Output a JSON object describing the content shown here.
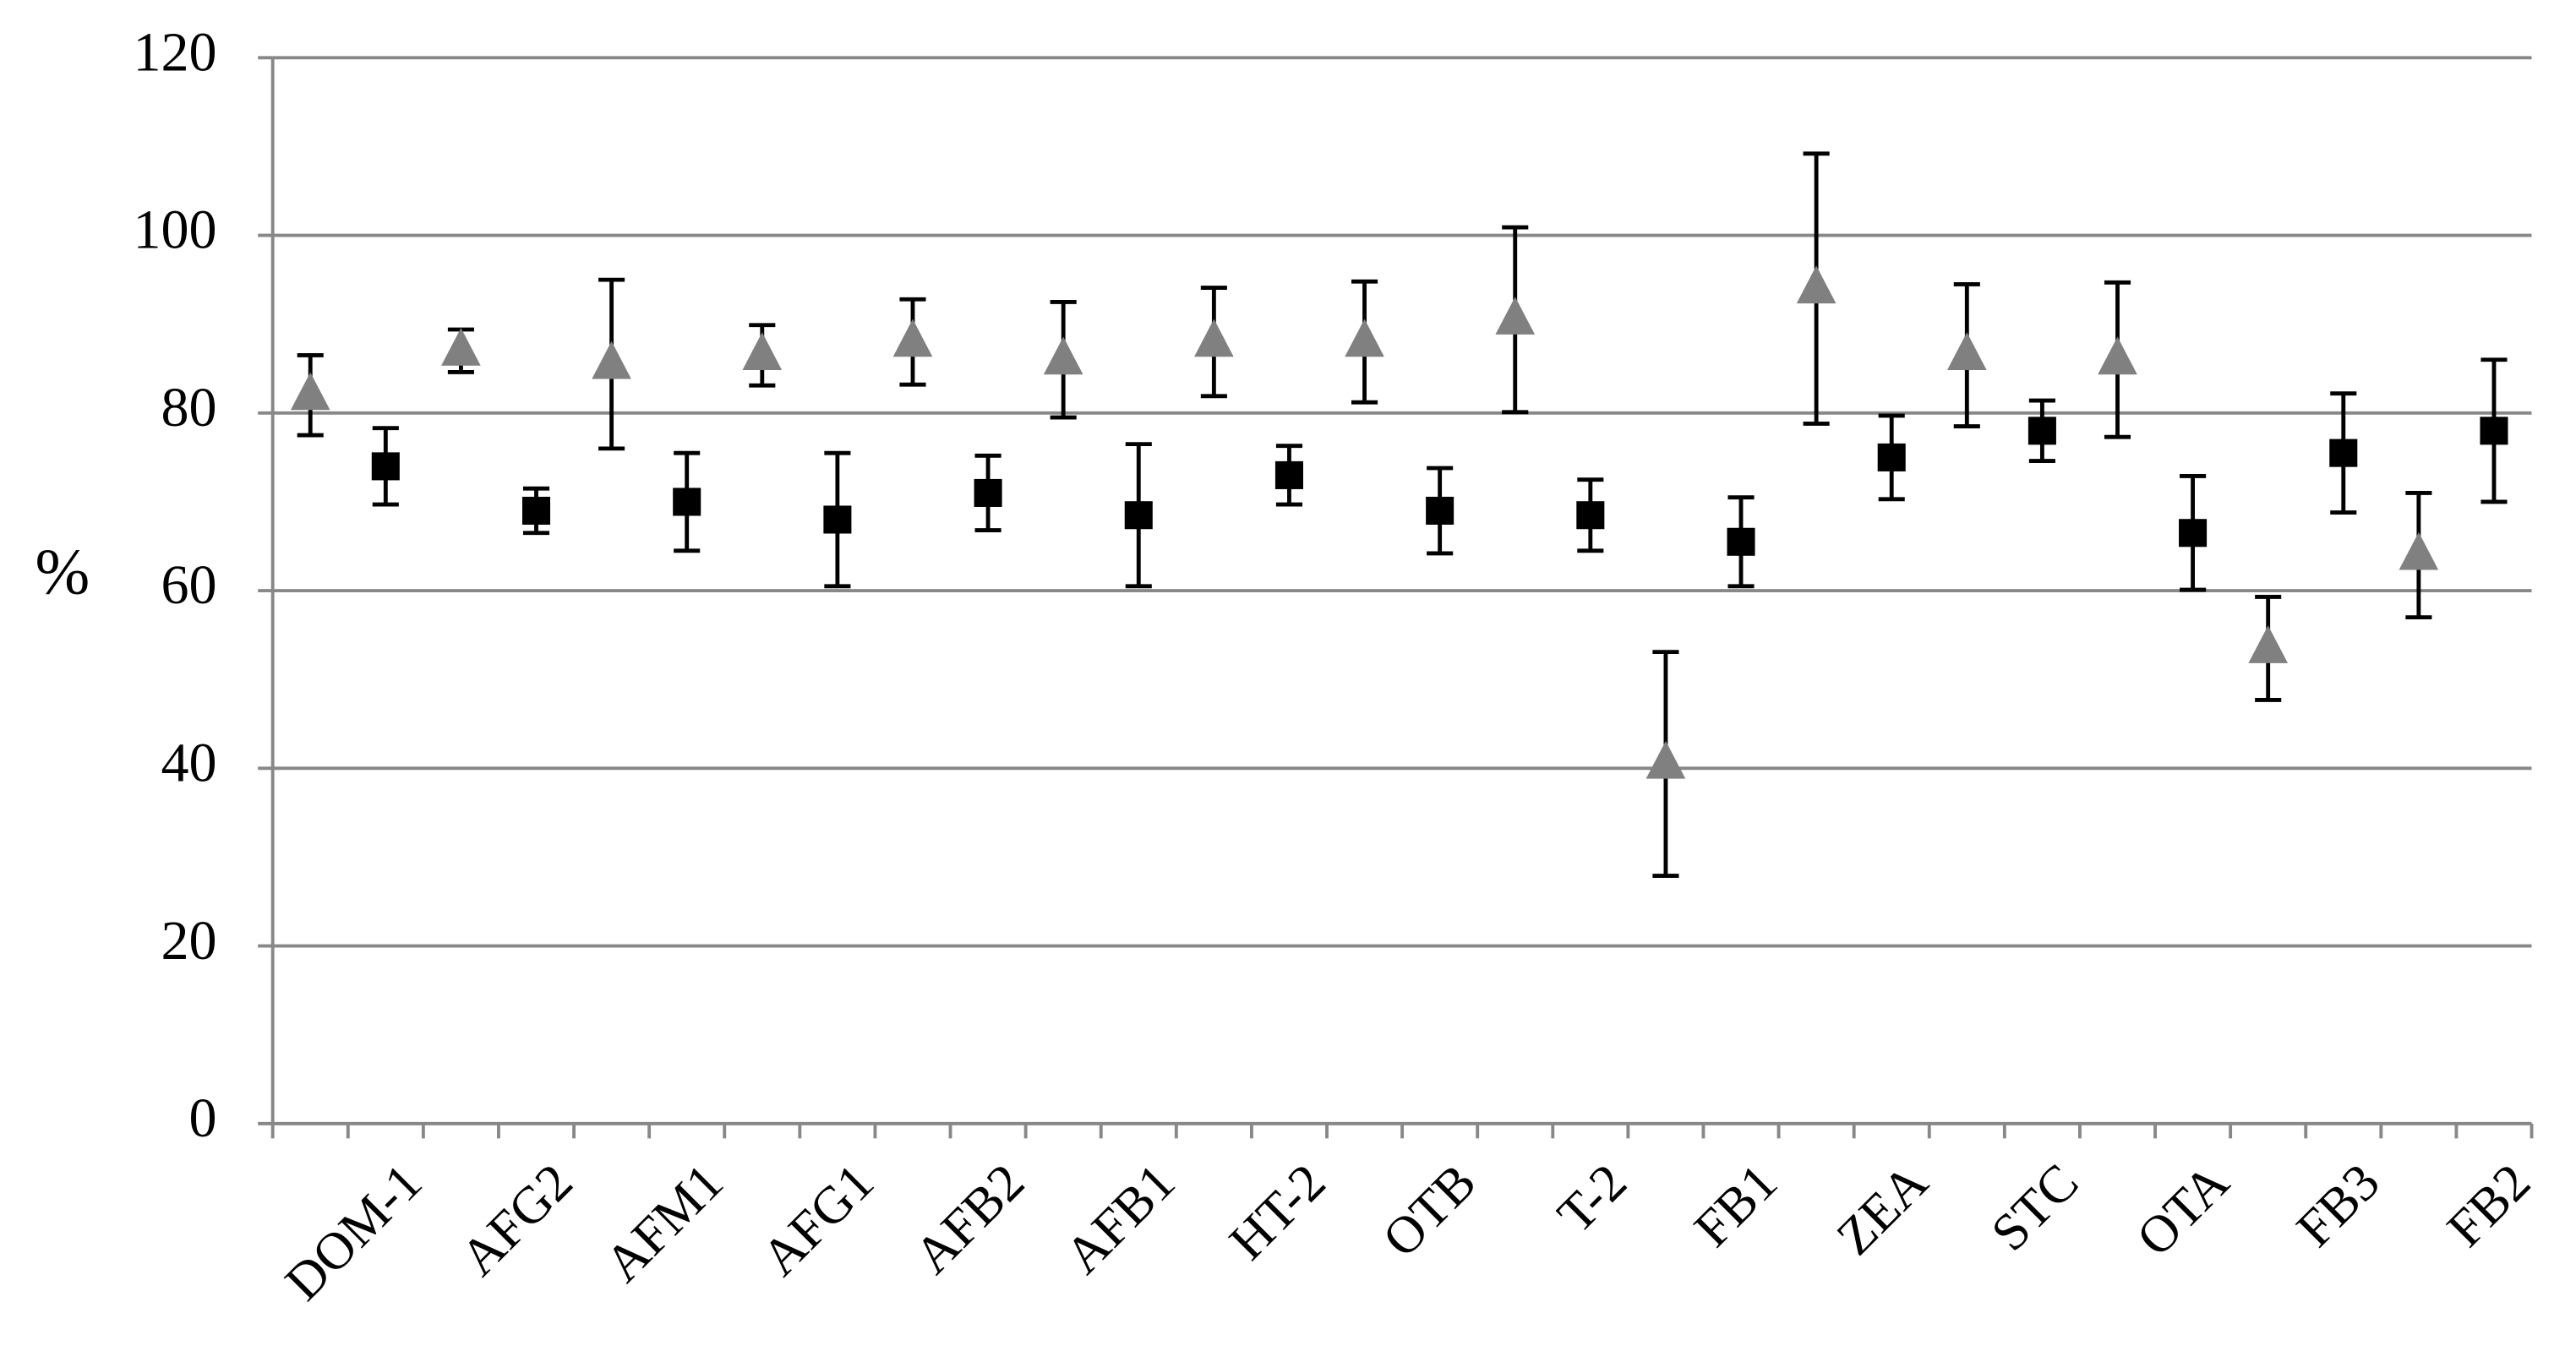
{
  "chart_data": {
    "type": "errorbar",
    "y_label": "%",
    "categories": [
      null,
      "DOM-1",
      null,
      "AFG2",
      null,
      "AFM1",
      null,
      "AFG1",
      null,
      "AFB2",
      null,
      "AFB1",
      null,
      "HT-2",
      null,
      "OTB",
      null,
      "T-2",
      null,
      "FB1",
      null,
      "ZEA",
      null,
      "STC",
      null,
      "OTA",
      null,
      "FB3",
      null,
      "FB2"
    ],
    "series": [
      {
        "color": "#808080",
        "marker": "triangle",
        "values": [
          82,
          null,
          87,
          null,
          85.5,
          null,
          86.5,
          null,
          88,
          null,
          86,
          null,
          88,
          null,
          88,
          null,
          90.5,
          null,
          40.5,
          null,
          94,
          null,
          86.5,
          null,
          86,
          null,
          53.5,
          null,
          64,
          null
        ],
        "errors": [
          4.5,
          null,
          2.4,
          null,
          9.5,
          null,
          3.4,
          null,
          4.8,
          null,
          6.5,
          null,
          6.1,
          null,
          6.8,
          null,
          10.4,
          null,
          12.6,
          null,
          15.2,
          null,
          8,
          null,
          8.7,
          null,
          5.8,
          null,
          7,
          null
        ]
      },
      {
        "color": "#000000",
        "marker": "square",
        "values": [
          null,
          74,
          null,
          69,
          null,
          70,
          null,
          68,
          null,
          71,
          null,
          68.5,
          null,
          73,
          null,
          69,
          null,
          68.5,
          null,
          65.5,
          null,
          75,
          null,
          78,
          null,
          66.5,
          null,
          75.5,
          null,
          78
        ],
        "errors": [
          null,
          4.3,
          null,
          2.5,
          null,
          5.5,
          null,
          7.5,
          null,
          4.2,
          null,
          8,
          null,
          3.3,
          null,
          4.8,
          null,
          4,
          null,
          5,
          null,
          4.7,
          null,
          3.4,
          null,
          6.4,
          null,
          6.7,
          null,
          8
        ]
      }
    ],
    "ylim": [
      0,
      120
    ],
    "yticks": [
      0,
      20,
      40,
      60,
      80,
      100,
      120
    ],
    "grid": true
  }
}
